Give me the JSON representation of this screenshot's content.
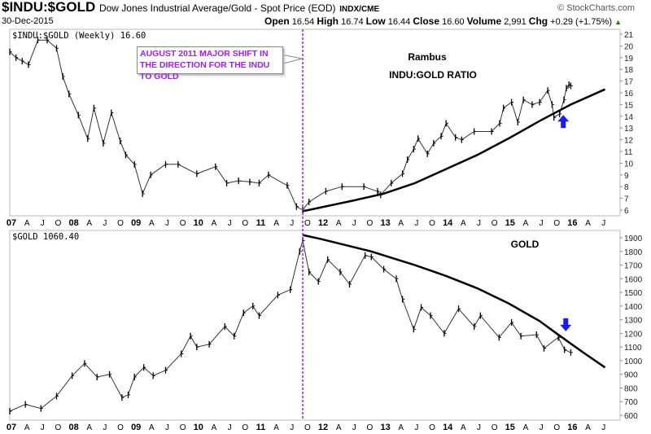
{
  "header": {
    "symbol": "$INDU:$GOLD",
    "description": "Dow Jones Industrial Average/Gold - Spot Price (EOD)",
    "exchange": "INDX/CME",
    "date": "30-Dec-2015",
    "brand": "© StockCharts.com",
    "open_label": "Open",
    "open": "16.54",
    "high_label": "High",
    "high": "16.74",
    "low_label": "Low",
    "low": "16.44",
    "close_label": "Close",
    "close": "16.60",
    "volume_label": "Volume",
    "volume": "2,991",
    "chg_label": "Chg",
    "chg": "+0.29 (+1.75%)",
    "up_color": "#1a7f1a"
  },
  "annotation": {
    "text": "AUGUST 2011 MAJOR SHIFT IN THE DIRECTION FOR THE INDU TO GOLD",
    "color": "#a020f0",
    "event_date": 2011.7
  },
  "chart_data": [
    {
      "type": "line",
      "panel_label": "$INDU:$GOLD (Weekly) 16.60",
      "titles": [
        "Rambus",
        "INDU:GOLD RATIO"
      ],
      "ylim": [
        5.5,
        21.7
      ],
      "yticks": [
        6,
        7,
        8,
        9,
        10,
        11,
        12,
        13,
        14,
        15,
        16,
        17,
        18,
        19,
        20,
        21
      ],
      "xlim": [
        2007,
        2016.8
      ],
      "x": [
        2007.0,
        2007.1,
        2007.2,
        2007.3,
        2007.45,
        2007.6,
        2007.75,
        2007.85,
        2007.95,
        2008.1,
        2008.25,
        2008.35,
        2008.5,
        2008.63,
        2008.77,
        2008.86,
        2009.0,
        2009.13,
        2009.26,
        2009.5,
        2009.7,
        2010.0,
        2010.3,
        2010.48,
        2010.67,
        2010.85,
        2011.0,
        2011.15,
        2011.45,
        2011.6,
        2011.7,
        2011.8,
        2012.07,
        2012.33,
        2012.68,
        2012.9,
        2012.95,
        2013.12,
        2013.3,
        2013.38,
        2013.48,
        2013.55,
        2013.7,
        2013.8,
        2013.92,
        2014.0,
        2014.15,
        2014.25,
        2014.45,
        2014.73,
        2014.86,
        2014.92,
        2015.05,
        2015.15,
        2015.24,
        2015.38,
        2015.5,
        2015.63,
        2015.7,
        2015.73,
        2015.82,
        2015.89,
        2015.93,
        2015.97,
        2016.0
      ],
      "values": [
        19.5,
        19.0,
        18.7,
        18.4,
        20.5,
        20.5,
        19.8,
        17.4,
        15.9,
        14.1,
        12.1,
        14.7,
        11.7,
        14.3,
        11.9,
        10.7,
        9.9,
        7.4,
        9.0,
        9.9,
        9.9,
        9.1,
        9.7,
        8.3,
        8.5,
        8.4,
        8.3,
        9.0,
        8.1,
        6.3,
        6.0,
        6.7,
        7.6,
        8.0,
        8.0,
        7.6,
        7.3,
        8.3,
        9.1,
        10.3,
        11.2,
        12.1,
        10.8,
        11.7,
        12.3,
        13.4,
        12.2,
        12.0,
        12.7,
        12.7,
        13.4,
        14.7,
        15.2,
        13.5,
        15.4,
        15.0,
        15.2,
        16.2,
        15.0,
        13.9,
        14.2,
        15.4,
        16.4,
        16.7,
        16.6
      ],
      "trendline": {
        "x": [
          2011.7,
          2012.5,
          2013.0,
          2013.5,
          2014.0,
          2014.5,
          2015.0,
          2015.5,
          2016.0,
          2016.55
        ],
        "values": [
          5.9,
          6.8,
          7.4,
          8.3,
          9.5,
          10.7,
          12.1,
          13.6,
          15.0,
          16.3
        ]
      },
      "arrow": {
        "direction": "up",
        "x": 2015.88,
        "value": 13.0,
        "color": "#1a1aff"
      }
    },
    {
      "type": "line",
      "panel_label": "$GOLD 1060.40",
      "titles": [
        "GOLD"
      ],
      "ylim": [
        570,
        1940
      ],
      "yticks": [
        600,
        700,
        800,
        900,
        1000,
        1100,
        1200,
        1300,
        1400,
        1500,
        1600,
        1700,
        1800,
        1900
      ],
      "xlim": [
        2007,
        2016.8
      ],
      "x": [
        2007.0,
        2007.25,
        2007.5,
        2007.75,
        2008.0,
        2008.2,
        2008.4,
        2008.6,
        2008.8,
        2008.9,
        2009.0,
        2009.15,
        2009.3,
        2009.5,
        2009.75,
        2009.9,
        2010.0,
        2010.2,
        2010.45,
        2010.6,
        2010.75,
        2010.9,
        2011.0,
        2011.3,
        2011.5,
        2011.65,
        2011.7,
        2011.8,
        2011.95,
        2012.1,
        2012.3,
        2012.45,
        2012.7,
        2012.8,
        2013.0,
        2013.2,
        2013.3,
        2013.48,
        2013.6,
        2013.75,
        2013.97,
        2014.2,
        2014.45,
        2014.55,
        2014.85,
        2015.05,
        2015.2,
        2015.45,
        2015.57,
        2015.8,
        2015.9,
        2016.0
      ],
      "values": [
        630,
        680,
        650,
        740,
        890,
        980,
        880,
        900,
        730,
        750,
        880,
        950,
        890,
        930,
        1050,
        1180,
        1100,
        1120,
        1250,
        1180,
        1350,
        1400,
        1330,
        1480,
        1520,
        1800,
        1880,
        1650,
        1580,
        1740,
        1650,
        1560,
        1770,
        1760,
        1670,
        1600,
        1450,
        1230,
        1390,
        1330,
        1200,
        1380,
        1250,
        1330,
        1170,
        1280,
        1180,
        1190,
        1090,
        1170,
        1080,
        1060
      ],
      "trendline": {
        "x": [
          2011.7,
          2012.0,
          2012.8,
          2013.5,
          2014.0,
          2014.5,
          2015.0,
          2015.5,
          2015.8,
          2016.2,
          2016.55
        ],
        "values": [
          1920,
          1890,
          1800,
          1700,
          1620,
          1530,
          1420,
          1290,
          1190,
          1060,
          950
        ]
      },
      "arrow": {
        "direction": "down",
        "x": 2015.92,
        "value": 1215,
        "color": "#1a1aff"
      }
    }
  ],
  "x_axis": {
    "labels": [
      {
        "t": 2007,
        "text": "07",
        "year": true
      },
      {
        "t": 2007.25,
        "text": "A"
      },
      {
        "t": 2007.5,
        "text": "J"
      },
      {
        "t": 2007.75,
        "text": "O"
      },
      {
        "t": 2008,
        "text": "08",
        "year": true
      },
      {
        "t": 2008.25,
        "text": "A"
      },
      {
        "t": 2008.5,
        "text": "J"
      },
      {
        "t": 2008.75,
        "text": "O"
      },
      {
        "t": 2009,
        "text": "09",
        "year": true
      },
      {
        "t": 2009.25,
        "text": "A"
      },
      {
        "t": 2009.5,
        "text": "J"
      },
      {
        "t": 2009.75,
        "text": "O"
      },
      {
        "t": 2010,
        "text": "10",
        "year": true
      },
      {
        "t": 2010.25,
        "text": "A"
      },
      {
        "t": 2010.5,
        "text": "J"
      },
      {
        "t": 2010.75,
        "text": "O"
      },
      {
        "t": 2011,
        "text": "11",
        "year": true
      },
      {
        "t": 2011.25,
        "text": "A"
      },
      {
        "t": 2011.5,
        "text": "J"
      },
      {
        "t": 2011.75,
        "text": "O"
      },
      {
        "t": 2012,
        "text": "12",
        "year": true
      },
      {
        "t": 2012.25,
        "text": "A"
      },
      {
        "t": 2012.5,
        "text": "J"
      },
      {
        "t": 2012.75,
        "text": "O"
      },
      {
        "t": 2013,
        "text": "13",
        "year": true
      },
      {
        "t": 2013.25,
        "text": "A"
      },
      {
        "t": 2013.5,
        "text": "J"
      },
      {
        "t": 2013.75,
        "text": "O"
      },
      {
        "t": 2014,
        "text": "14",
        "year": true
      },
      {
        "t": 2014.25,
        "text": "A"
      },
      {
        "t": 2014.5,
        "text": "J"
      },
      {
        "t": 2014.75,
        "text": "O"
      },
      {
        "t": 2015,
        "text": "15",
        "year": true
      },
      {
        "t": 2015.25,
        "text": "A"
      },
      {
        "t": 2015.5,
        "text": "J"
      },
      {
        "t": 2015.75,
        "text": "O"
      },
      {
        "t": 2016,
        "text": "16",
        "year": true
      },
      {
        "t": 2016.25,
        "text": "A"
      },
      {
        "t": 2016.5,
        "text": "J"
      }
    ]
  }
}
